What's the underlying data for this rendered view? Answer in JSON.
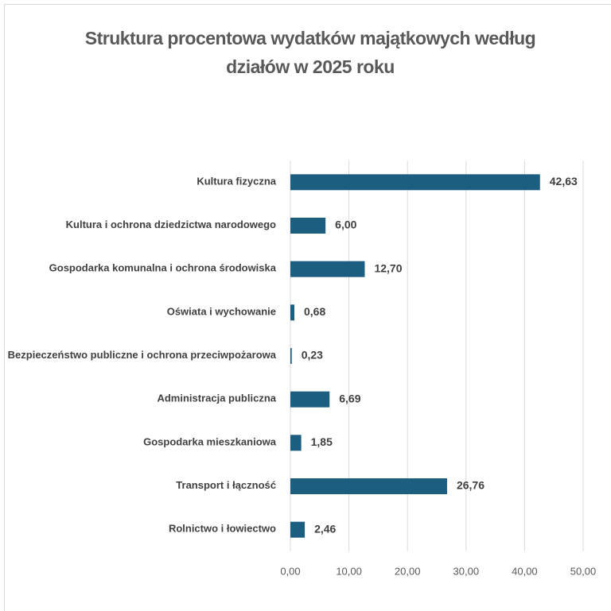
{
  "chart_data": {
    "type": "bar",
    "orientation": "horizontal",
    "title": "Struktura procentowa wydatków majątkowych według działów w 2025 roku",
    "categories": [
      "Kultura fizyczna",
      "Kultura i ochrona dziedzictwa narodowego",
      "Gospodarka komunalna i ochrona środowiska",
      "Oświata i wychowanie",
      "Bezpieczeństwo publiczne i ochrona przeciwpożarowa",
      "Administracja publiczna",
      "Gospodarka mieszkaniowa",
      "Transport i łączność",
      "Rolnictwo i łowiectwo"
    ],
    "values": [
      42.63,
      6.0,
      12.7,
      0.68,
      0.23,
      6.69,
      1.85,
      26.76,
      2.46
    ],
    "value_labels": [
      "42,63",
      "6,00",
      "12,70",
      "0,68",
      "0,23",
      "6,69",
      "1,85",
      "26,76",
      "2,46"
    ],
    "color": "#1b5e80",
    "xlim": [
      0,
      50
    ],
    "xticks": [
      {
        "value": 0,
        "label": "0,00"
      },
      {
        "value": 10,
        "label": "10,00"
      },
      {
        "value": 20,
        "label": "20,00"
      },
      {
        "value": 30,
        "label": "30,00"
      },
      {
        "value": 40,
        "label": "40,00"
      },
      {
        "value": 50,
        "label": "50,00"
      }
    ],
    "grid": true
  }
}
